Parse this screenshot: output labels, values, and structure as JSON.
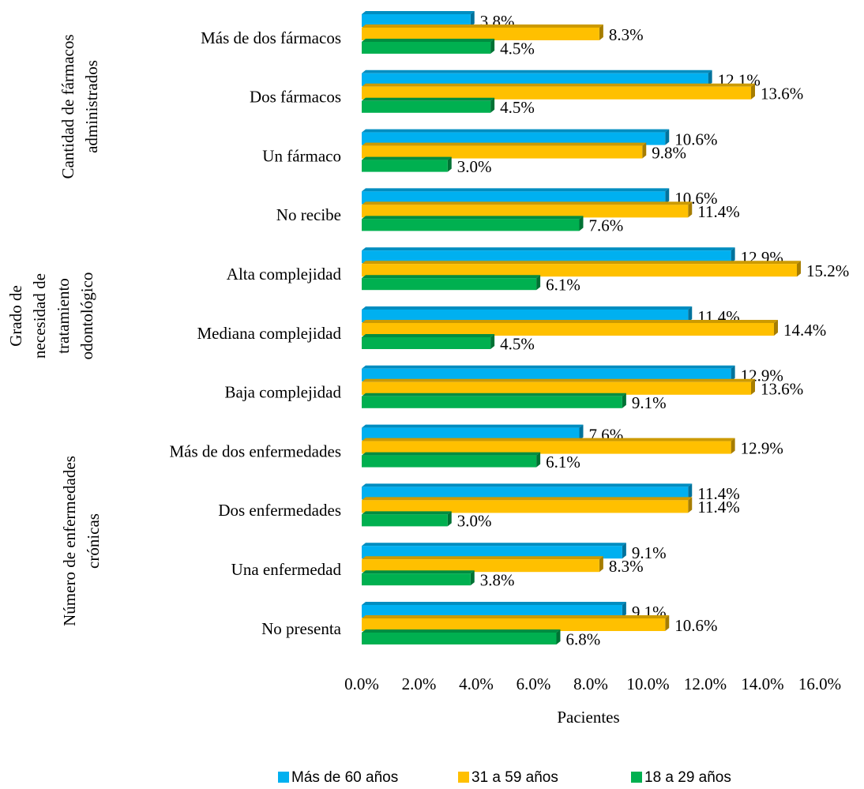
{
  "chart_data": {
    "type": "bar",
    "orientation": "horizontal",
    "categories": [
      "Más de dos fármacos",
      "Dos fármacos",
      "Un fármaco",
      "No recibe",
      "Alta complejidad",
      "Mediana complejidad",
      "Baja complejidad",
      "Más de dos enfermedades",
      "Dos enfermedades",
      "Una enfermedad",
      "No presenta"
    ],
    "groups": [
      {
        "label": [
          "Cantidad de fármacos",
          "administrados"
        ]
      },
      {
        "label": [
          "Grado de",
          "necesidad de",
          "tratamiento",
          "odontológico"
        ]
      },
      {
        "label": [
          "Número de enfermedades",
          "crónicas"
        ]
      }
    ],
    "series": [
      {
        "name": "Más de 60 años",
        "color": "#00b0f0",
        "values": [
          3.8,
          12.1,
          10.6,
          10.6,
          12.9,
          11.4,
          12.9,
          7.6,
          11.4,
          9.1,
          9.1
        ],
        "value_labels": [
          "3.8%",
          "12.1%",
          "10.6%",
          "10.6%",
          "12.9%",
          "11.4%",
          "12.9%",
          "7.6%",
          "11.4%",
          "9.1%",
          "9.1%"
        ]
      },
      {
        "name": "31 a 59 años",
        "color": "#ffc000",
        "values": [
          8.3,
          13.6,
          9.8,
          11.4,
          15.2,
          14.4,
          13.6,
          12.9,
          11.4,
          8.3,
          10.6
        ],
        "value_labels": [
          "8.3%",
          "13.6%",
          "9.8%",
          "11.4%",
          "15.2%",
          "14.4%",
          "13.6%",
          "12.9%",
          "11.4%",
          "8.3%",
          "10.6%"
        ]
      },
      {
        "name": "18 a 29 años",
        "color": "#00b050",
        "values": [
          4.5,
          4.5,
          3.0,
          7.6,
          6.1,
          4.5,
          9.1,
          6.1,
          3.0,
          3.8,
          6.8
        ],
        "value_labels": [
          "4.5%",
          "4.5%",
          "3.0%",
          "7.6%",
          "6.1%",
          "4.5%",
          "9.1%",
          "6.1%",
          "3.0%",
          "3.8%",
          "6.8%"
        ]
      }
    ],
    "x_label": "Pacientes",
    "xlim": [
      0,
      16
    ],
    "xticks": [
      {
        "value": 0,
        "label": "0.0%"
      },
      {
        "value": 2,
        "label": "2.0%"
      },
      {
        "value": 4,
        "label": "4.0%"
      },
      {
        "value": 6,
        "label": "6.0%"
      },
      {
        "value": 8,
        "label": "8.0%"
      },
      {
        "value": 10,
        "label": "10.0%"
      },
      {
        "value": 12,
        "label": "12.0%"
      },
      {
        "value": 14,
        "label": "14.0%"
      },
      {
        "value": 16,
        "label": "16.0%"
      }
    ],
    "grid": false,
    "legend": "bottom"
  }
}
